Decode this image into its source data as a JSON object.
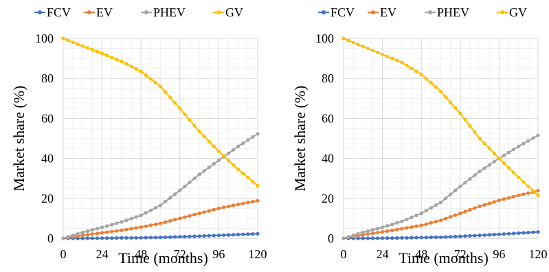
{
  "chart_data": [
    {
      "type": "line",
      "xlabel": "Time (months)",
      "ylabel": "Market share (%)",
      "xlim": [
        0,
        120
      ],
      "ylim": [
        0,
        100
      ],
      "xticks": [
        "0",
        "24",
        "48",
        "72",
        "96",
        "120"
      ],
      "yticks": [
        "0",
        "20",
        "40",
        "60",
        "80",
        "100"
      ],
      "grid": true,
      "legend_position": "top",
      "series": [
        {
          "name": "FCV",
          "color": "#4472C4",
          "x": [
            0,
            12,
            24,
            36,
            48,
            60,
            72,
            84,
            96,
            108,
            120
          ],
          "y": [
            0,
            0,
            0.1,
            0.2,
            0.3,
            0.5,
            0.8,
            1.1,
            1.5,
            1.9,
            2.3
          ]
        },
        {
          "name": "EV",
          "color": "#ED7D31",
          "x": [
            0,
            12,
            24,
            36,
            48,
            60,
            72,
            84,
            96,
            108,
            120
          ],
          "y": [
            0,
            1.5,
            2.8,
            4.0,
            5.6,
            7.5,
            10.0,
            12.5,
            15.0,
            17.0,
            18.8
          ]
        },
        {
          "name": "PHEV",
          "color": "#A5A5A5",
          "x": [
            0,
            12,
            24,
            36,
            48,
            60,
            72,
            84,
            96,
            108,
            120
          ],
          "y": [
            0,
            3.0,
            5.5,
            8.2,
            11.5,
            16.5,
            24.0,
            32.0,
            39.0,
            46.0,
            52.3
          ]
        },
        {
          "name": "GV",
          "color": "#FFC000",
          "x": [
            0,
            12,
            24,
            36,
            48,
            60,
            72,
            84,
            96,
            108,
            120
          ],
          "y": [
            100,
            96.2,
            92.5,
            88.5,
            83.5,
            76.0,
            65.0,
            53.5,
            43.5,
            34.5,
            26.3
          ]
        }
      ]
    },
    {
      "type": "line",
      "xlabel": "Time (months)",
      "ylabel": "Market share (%)",
      "xlim": [
        0,
        120
      ],
      "ylim": [
        0,
        100
      ],
      "xticks": [
        "0",
        "24",
        "48",
        "72",
        "96",
        "120"
      ],
      "yticks": [
        "0",
        "20",
        "40",
        "60",
        "80",
        "100"
      ],
      "grid": true,
      "legend_position": "top",
      "series": [
        {
          "name": "FCV",
          "color": "#4472C4",
          "x": [
            0,
            12,
            24,
            36,
            48,
            60,
            72,
            84,
            96,
            108,
            120
          ],
          "y": [
            0,
            0,
            0.1,
            0.2,
            0.4,
            0.6,
            1.0,
            1.5,
            2.0,
            2.6,
            3.2
          ]
        },
        {
          "name": "EV",
          "color": "#ED7D31",
          "x": [
            0,
            12,
            24,
            36,
            48,
            60,
            72,
            84,
            96,
            108,
            120
          ],
          "y": [
            0,
            1.8,
            3.2,
            4.8,
            6.5,
            9.0,
            12.5,
            16.0,
            19.0,
            21.5,
            23.8
          ]
        },
        {
          "name": "PHEV",
          "color": "#A5A5A5",
          "x": [
            0,
            12,
            24,
            36,
            48,
            60,
            72,
            84,
            96,
            108,
            120
          ],
          "y": [
            0,
            3.0,
            5.5,
            8.5,
            12.5,
            18.0,
            26.0,
            33.5,
            40.0,
            46.0,
            51.5
          ]
        },
        {
          "name": "GV",
          "color": "#FFC000",
          "x": [
            0,
            12,
            24,
            36,
            48,
            60,
            72,
            84,
            96,
            108,
            120
          ],
          "y": [
            100,
            96.0,
            92.0,
            88.0,
            82.0,
            73.5,
            62.5,
            50.0,
            40.0,
            30.5,
            21.5
          ]
        }
      ]
    }
  ]
}
